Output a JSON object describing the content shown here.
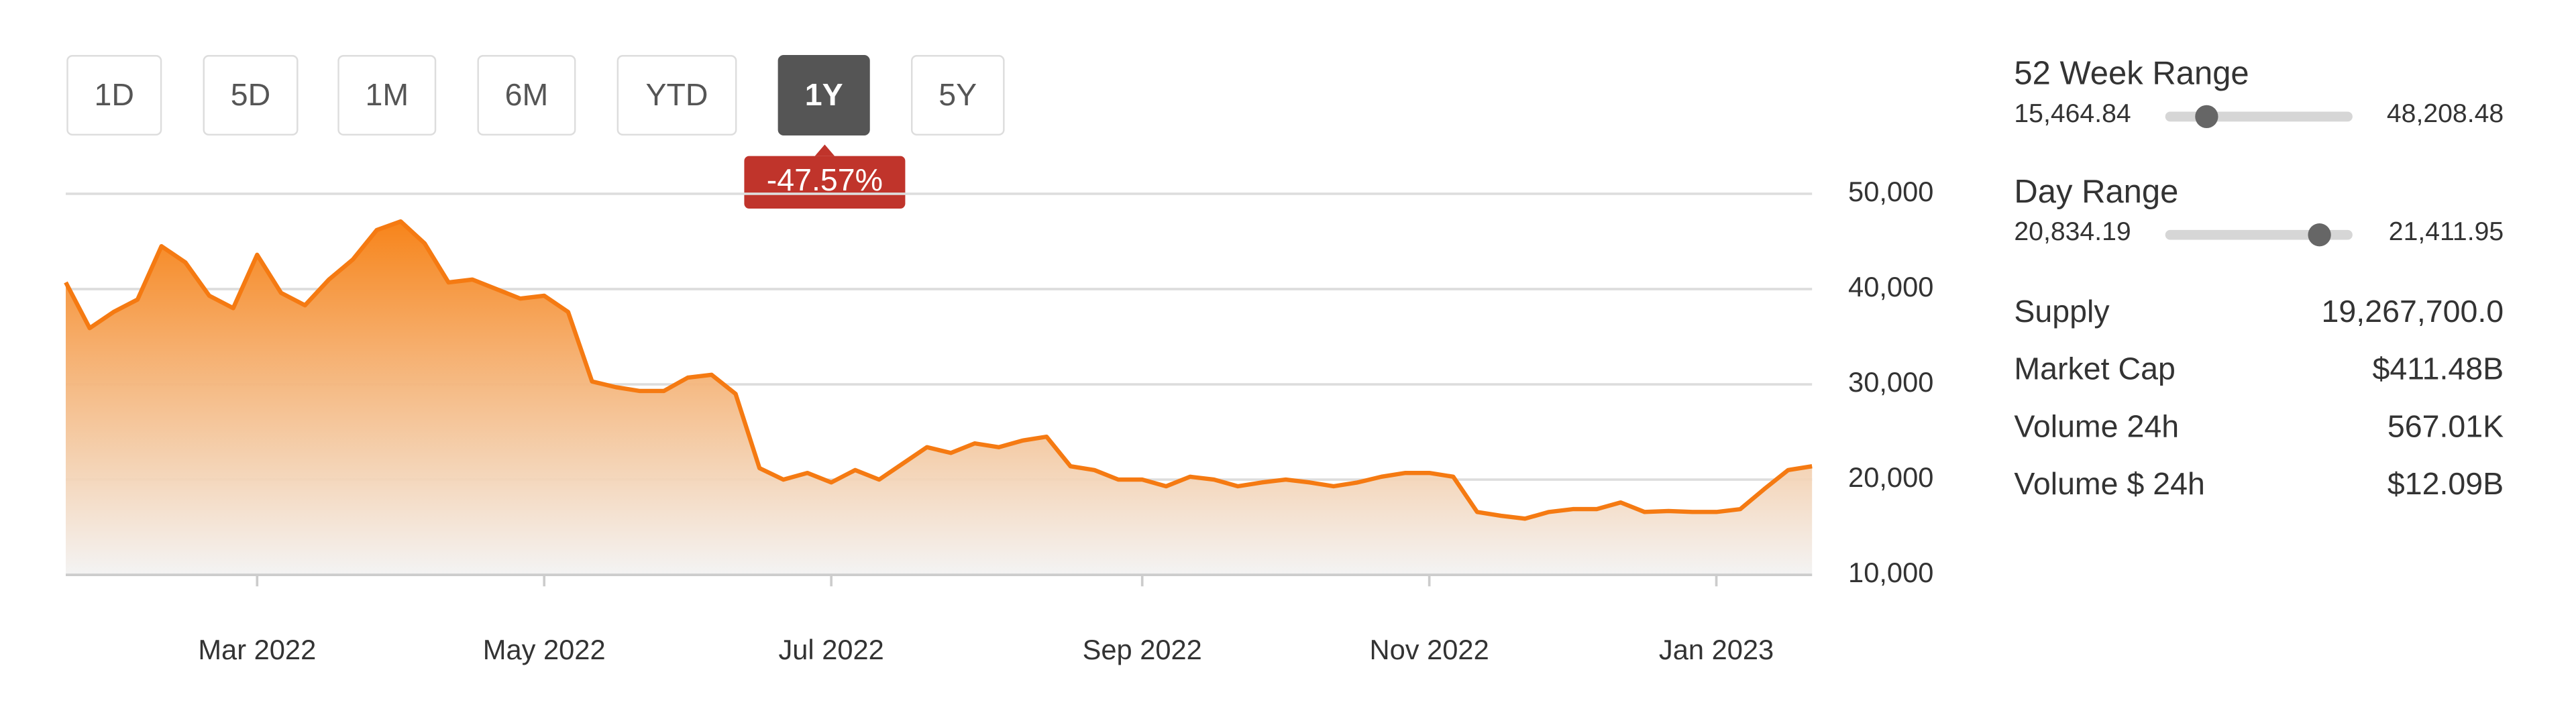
{
  "controls": {
    "ranges": [
      "1D",
      "5D",
      "1M",
      "6M",
      "YTD",
      "1Y",
      "5Y"
    ],
    "active_index": 5,
    "change_badge": "-47.57%"
  },
  "chart_data": {
    "type": "area",
    "color": "#f57a12",
    "categories": [
      null,
      null,
      null,
      null,
      null,
      null,
      null,
      null,
      "Mar 2022",
      null,
      null,
      null,
      null,
      null,
      null,
      null,
      null,
      null,
      null,
      null,
      "May 2022",
      null,
      null,
      null,
      null,
      null,
      null,
      null,
      null,
      null,
      null,
      null,
      "Jul 2022",
      null,
      null,
      null,
      null,
      null,
      null,
      null,
      null,
      null,
      null,
      null,
      null,
      "Sep 2022",
      null,
      null,
      null,
      null,
      null,
      null,
      null,
      null,
      null,
      null,
      null,
      "Nov 2022",
      null,
      null,
      null,
      null,
      null,
      null,
      null,
      null,
      null,
      null,
      null,
      "Jan 2023",
      null,
      null,
      null,
      null
    ],
    "values": [
      40700,
      35900,
      37600,
      38900,
      44500,
      42800,
      39300,
      38000,
      43600,
      39600,
      38300,
      41000,
      43100,
      46200,
      47100,
      44800,
      40700,
      41000,
      40000,
      39000,
      39300,
      37600,
      30300,
      29700,
      29300,
      29300,
      30700,
      31000,
      29000,
      21200,
      20000,
      20700,
      19700,
      21000,
      20000,
      21700,
      23400,
      22800,
      23800,
      23400,
      24100,
      24500,
      21400,
      21000,
      20000,
      20000,
      19300,
      20300,
      20000,
      19300,
      19700,
      20000,
      19700,
      19300,
      19700,
      20300,
      20700,
      20700,
      20300,
      16600,
      16200,
      15900,
      16600,
      16900,
      16900,
      17600,
      16600,
      16700,
      16600,
      16600,
      16900,
      19000,
      21000,
      21400
    ],
    "ylim": [
      10000,
      50000
    ],
    "yticks": [
      {
        "value": 10000,
        "label": "10,000"
      },
      {
        "value": 20000,
        "label": "20,000"
      },
      {
        "value": 30000,
        "label": "30,000"
      },
      {
        "value": 40000,
        "label": "40,000"
      },
      {
        "value": 50000,
        "label": "50,000"
      }
    ],
    "grid": true
  },
  "stats": {
    "week_range": {
      "label": "52 Week Range",
      "low": {
        "value": 15464.84,
        "label": "15,464.84"
      },
      "high": {
        "value": 48208.48,
        "label": "48,208.48"
      },
      "position": 22700
    },
    "day_range": {
      "label": "Day Range",
      "low": {
        "value": 20834.19,
        "label": "20,834.19"
      },
      "high": {
        "value": 21411.95,
        "label": "21,411.95"
      },
      "position": 21310
    },
    "rows": [
      [
        "Supply",
        "19,267,700.0"
      ],
      [
        "Market Cap",
        "$411.48B"
      ],
      [
        "Volume 24h",
        "567.01K"
      ],
      [
        "Volume $ 24h",
        "$12.09B"
      ]
    ]
  }
}
